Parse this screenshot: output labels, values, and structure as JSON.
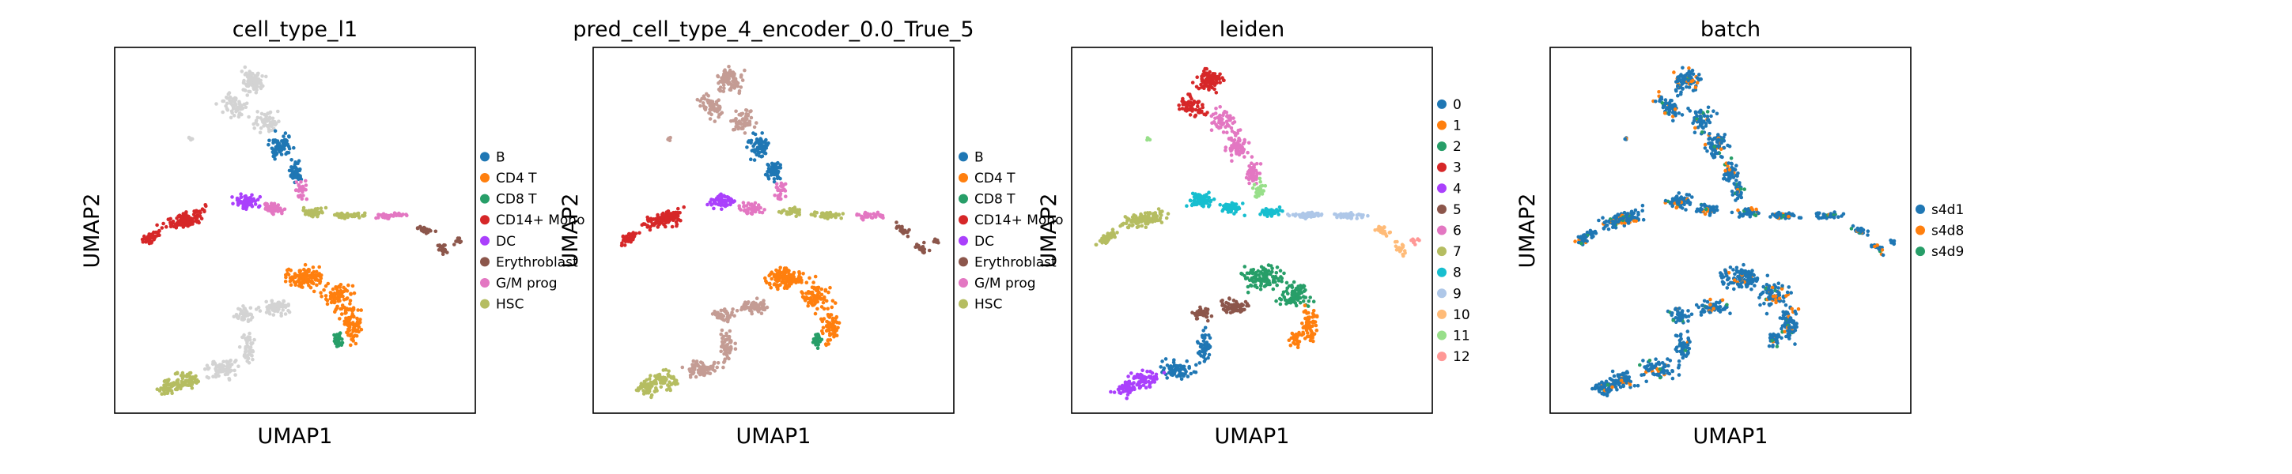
{
  "chart_data": [
    {
      "type": "scatter",
      "title": "cell_type_l1",
      "xlabel": "UMAP1",
      "ylabel": "UMAP2",
      "grid": false,
      "legend_position": "right",
      "legend": [
        {
          "label": "B",
          "color": "#1f77b4"
        },
        {
          "label": "CD4 T",
          "color": "#ff7f0e"
        },
        {
          "label": "CD8 T",
          "color": "#279e68"
        },
        {
          "label": "CD14+ Mono",
          "color": "#d62728"
        },
        {
          "label": "DC",
          "color": "#aa40fc"
        },
        {
          "label": "Erythroblast",
          "color": "#8c564b"
        },
        {
          "label": "G/M prog",
          "color": "#e377c2"
        },
        {
          "label": "HSC",
          "color": "#b5bd61"
        }
      ]
    },
    {
      "type": "scatter",
      "title": "pred_cell_type_4_encoder_0.0_True_5",
      "xlabel": "UMAP1",
      "ylabel": "UMAP2",
      "grid": false,
      "legend_position": "right",
      "legend": [
        {
          "label": "B",
          "color": "#1f77b4"
        },
        {
          "label": "CD4 T",
          "color": "#ff7f0e"
        },
        {
          "label": "CD8 T",
          "color": "#279e68"
        },
        {
          "label": "CD14+ Mono",
          "color": "#d62728"
        },
        {
          "label": "DC",
          "color": "#aa40fc"
        },
        {
          "label": "Erythroblast",
          "color": "#8c564b"
        },
        {
          "label": "G/M prog",
          "color": "#e377c2"
        },
        {
          "label": "HSC",
          "color": "#b5bd61"
        }
      ]
    },
    {
      "type": "scatter",
      "title": "leiden",
      "xlabel": "UMAP1",
      "ylabel": "UMAP2",
      "grid": false,
      "legend_position": "right",
      "legend": [
        {
          "label": "0",
          "color": "#1f77b4"
        },
        {
          "label": "1",
          "color": "#ff7f0e"
        },
        {
          "label": "2",
          "color": "#279e68"
        },
        {
          "label": "3",
          "color": "#d62728"
        },
        {
          "label": "4",
          "color": "#aa40fc"
        },
        {
          "label": "5",
          "color": "#8c564b"
        },
        {
          "label": "6",
          "color": "#e377c2"
        },
        {
          "label": "7",
          "color": "#b5bd61"
        },
        {
          "label": "8",
          "color": "#17becf"
        },
        {
          "label": "9",
          "color": "#aec7e8"
        },
        {
          "label": "10",
          "color": "#ffbb78"
        },
        {
          "label": "11",
          "color": "#98df8a"
        },
        {
          "label": "12",
          "color": "#ff9896"
        }
      ]
    },
    {
      "type": "scatter",
      "title": "batch",
      "xlabel": "UMAP1",
      "ylabel": "UMAP2",
      "grid": false,
      "legend_position": "right",
      "legend": [
        {
          "label": "s4d1",
          "color": "#1f77b4"
        },
        {
          "label": "s4d8",
          "color": "#ff7f0e"
        },
        {
          "label": "s4d9",
          "color": "#279e68"
        }
      ]
    }
  ]
}
